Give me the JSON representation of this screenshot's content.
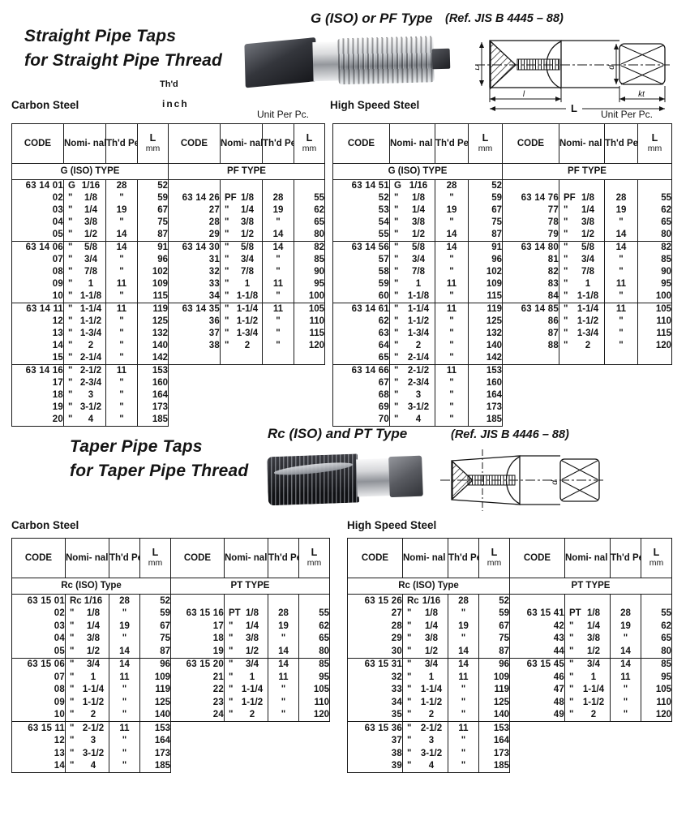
{
  "sections": {
    "straight": {
      "title_line1": "Straight Pipe Taps",
      "title_line2": "for Straight Pipe Thread",
      "type_label": "G (ISO) or PF Type",
      "ref_label": "(Ref. JIS B 4445 – 88)",
      "thd_note_line1": "Th'd",
      "thd_note_line2": "inch",
      "carbon_label": "Carbon Steel",
      "hss_label": "High Speed Steel",
      "unit_label": "Unit Per Pc."
    },
    "taper": {
      "title_line1": "Taper Pipe Taps",
      "title_line2": "for Taper Pipe Thread",
      "type_label": "Rc (ISO) and PT Type",
      "ref_label": "(Ref. JIS B 4446 – 88)",
      "carbon_label": "Carbon Steel",
      "hss_label": "High Speed Steel"
    }
  },
  "col_headers": {
    "code": "CODE",
    "size": "Nomi-\nnal\nSize",
    "thd": "Th'd\nPer\n25.4\nmm",
    "l_main": "L",
    "l_sub": "mm"
  },
  "diagram_labels": {
    "D": "D",
    "l": "l",
    "L": "L",
    "kt": "kt",
    "d": "d"
  },
  "tables": {
    "straight_carbon": {
      "type_left": "G (ISO) TYPE",
      "type_right": "PF TYPE",
      "separators": [
        5,
        10,
        15
      ],
      "right_rows": 15,
      "rows": [
        [
          "63 14 01",
          "G",
          "1/16",
          "28",
          "52",
          "",
          "",
          "",
          "",
          ""
        ],
        [
          "02",
          "\"",
          "1/8",
          "\"",
          "59",
          "63 14 26",
          "PF",
          "1/8",
          "28",
          "55"
        ],
        [
          "03",
          "\"",
          "1/4",
          "19",
          "67",
          "27",
          "\"",
          "1/4",
          "19",
          "62"
        ],
        [
          "04",
          "\"",
          "3/8",
          "\"",
          "75",
          "28",
          "\"",
          "3/8",
          "\"",
          "65"
        ],
        [
          "05",
          "\"",
          "1/2",
          "14",
          "87",
          "29",
          "\"",
          "1/2",
          "14",
          "80"
        ],
        [
          "63 14 06",
          "\"",
          "5/8",
          "14",
          "91",
          "63 14 30",
          "\"",
          "5/8",
          "14",
          "82"
        ],
        [
          "07",
          "\"",
          "3/4",
          "\"",
          "96",
          "31",
          "\"",
          "3/4",
          "\"",
          "85"
        ],
        [
          "08",
          "\"",
          "7/8",
          "\"",
          "102",
          "32",
          "\"",
          "7/8",
          "\"",
          "90"
        ],
        [
          "09",
          "\"",
          "1",
          "11",
          "109",
          "33",
          "\"",
          "1",
          "11",
          "95"
        ],
        [
          "10",
          "\"",
          "1-1/8",
          "\"",
          "115",
          "34",
          "\"",
          "1-1/8",
          "\"",
          "100"
        ],
        [
          "63 14 11",
          "\"",
          "1-1/4",
          "11",
          "119",
          "63 14 35",
          "\"",
          "1-1/4",
          "11",
          "105"
        ],
        [
          "12",
          "\"",
          "1-1/2",
          "\"",
          "125",
          "36",
          "\"",
          "1-1/2",
          "\"",
          "110"
        ],
        [
          "13",
          "\"",
          "1-3/4",
          "\"",
          "132",
          "37",
          "\"",
          "1-3/4",
          "\"",
          "115"
        ],
        [
          "14",
          "\"",
          "2",
          "\"",
          "140",
          "38",
          "\"",
          "2",
          "\"",
          "120"
        ],
        [
          "15",
          "\"",
          "2-1/4",
          "\"",
          "142",
          "",
          "",
          "",
          "",
          ""
        ],
        [
          "63 14 16",
          "\"",
          "2-1/2",
          "11",
          "153",
          "",
          "",
          "",
          "",
          ""
        ],
        [
          "17",
          "\"",
          "2-3/4",
          "\"",
          "160",
          "",
          "",
          "",
          "",
          ""
        ],
        [
          "18",
          "\"",
          "3",
          "\"",
          "164",
          "",
          "",
          "",
          "",
          ""
        ],
        [
          "19",
          "\"",
          "3-1/2",
          "\"",
          "173",
          "",
          "",
          "",
          "",
          ""
        ],
        [
          "20",
          "\"",
          "4",
          "\"",
          "185",
          "",
          "",
          "",
          "",
          ""
        ]
      ]
    },
    "straight_hss": {
      "type_left": "G (ISO) TYPE",
      "type_right": "PF TYPE",
      "separators": [
        5,
        10,
        15
      ],
      "right_rows": 15,
      "rows": [
        [
          "63 14 51",
          "G",
          "1/16",
          "28",
          "52",
          "",
          "",
          "",
          "",
          ""
        ],
        [
          "52",
          "\"",
          "1/8",
          "\"",
          "59",
          "63 14 76",
          "PF",
          "1/8",
          "28",
          "55"
        ],
        [
          "53",
          "\"",
          "1/4",
          "19",
          "67",
          "77",
          "\"",
          "1/4",
          "19",
          "62"
        ],
        [
          "54",
          "\"",
          "3/8",
          "\"",
          "75",
          "78",
          "\"",
          "3/8",
          "\"",
          "65"
        ],
        [
          "55",
          "\"",
          "1/2",
          "14",
          "87",
          "79",
          "\"",
          "1/2",
          "14",
          "80"
        ],
        [
          "63 14 56",
          "\"",
          "5/8",
          "14",
          "91",
          "63 14 80",
          "\"",
          "5/8",
          "14",
          "82"
        ],
        [
          "57",
          "\"",
          "3/4",
          "\"",
          "96",
          "81",
          "\"",
          "3/4",
          "\"",
          "85"
        ],
        [
          "58",
          "\"",
          "7/8",
          "\"",
          "102",
          "82",
          "\"",
          "7/8",
          "\"",
          "90"
        ],
        [
          "59",
          "\"",
          "1",
          "11",
          "109",
          "83",
          "\"",
          "1",
          "11",
          "95"
        ],
        [
          "60",
          "\"",
          "1-1/8",
          "\"",
          "115",
          "84",
          "\"",
          "1-1/8",
          "\"",
          "100"
        ],
        [
          "63 14 61",
          "\"",
          "1-1/4",
          "11",
          "119",
          "63 14 85",
          "\"",
          "1-1/4",
          "11",
          "105"
        ],
        [
          "62",
          "\"",
          "1-1/2",
          "\"",
          "125",
          "86",
          "\"",
          "1-1/2",
          "\"",
          "110"
        ],
        [
          "63",
          "\"",
          "1-3/4",
          "\"",
          "132",
          "87",
          "\"",
          "1-3/4",
          "\"",
          "115"
        ],
        [
          "64",
          "\"",
          "2",
          "\"",
          "140",
          "88",
          "\"",
          "2",
          "\"",
          "120"
        ],
        [
          "65",
          "\"",
          "2-1/4",
          "\"",
          "142",
          "",
          "",
          "",
          "",
          ""
        ],
        [
          "63 14 66",
          "\"",
          "2-1/2",
          "11",
          "153",
          "",
          "",
          "",
          "",
          ""
        ],
        [
          "67",
          "\"",
          "2-3/4",
          "\"",
          "160",
          "",
          "",
          "",
          "",
          ""
        ],
        [
          "68",
          "\"",
          "3",
          "\"",
          "164",
          "",
          "",
          "",
          "",
          ""
        ],
        [
          "69",
          "\"",
          "3-1/2",
          "\"",
          "173",
          "",
          "",
          "",
          "",
          ""
        ],
        [
          "70",
          "\"",
          "4",
          "\"",
          "185",
          "",
          "",
          "",
          "",
          ""
        ]
      ]
    },
    "taper_carbon": {
      "type_left": "Rc (ISO) Type",
      "type_right": "PT TYPE",
      "separators": [
        5,
        10
      ],
      "right_rows": 10,
      "rows": [
        [
          "63 15 01",
          "Rc",
          "1/16",
          "28",
          "52",
          "",
          "",
          "",
          "",
          ""
        ],
        [
          "02",
          "\"",
          "1/8",
          "\"",
          "59",
          "63 15 16",
          "PT",
          "1/8",
          "28",
          "55"
        ],
        [
          "03",
          "\"",
          "1/4",
          "19",
          "67",
          "17",
          "\"",
          "1/4",
          "19",
          "62"
        ],
        [
          "04",
          "\"",
          "3/8",
          "\"",
          "75",
          "18",
          "\"",
          "3/8",
          "\"",
          "65"
        ],
        [
          "05",
          "\"",
          "1/2",
          "14",
          "87",
          "19",
          "\"",
          "1/2",
          "14",
          "80"
        ],
        [
          "63 15 06",
          "\"",
          "3/4",
          "14",
          "96",
          "63 15 20",
          "\"",
          "3/4",
          "14",
          "85"
        ],
        [
          "07",
          "\"",
          "1",
          "11",
          "109",
          "21",
          "\"",
          "1",
          "11",
          "95"
        ],
        [
          "08",
          "\"",
          "1-1/4",
          "\"",
          "119",
          "22",
          "\"",
          "1-1/4",
          "\"",
          "105"
        ],
        [
          "09",
          "\"",
          "1-1/2",
          "\"",
          "125",
          "23",
          "\"",
          "1-1/2",
          "\"",
          "110"
        ],
        [
          "10",
          "\"",
          "2",
          "\"",
          "140",
          "24",
          "\"",
          "2",
          "\"",
          "120"
        ],
        [
          "63 15 11",
          "\"",
          "2-1/2",
          "11",
          "153",
          "",
          "",
          "",
          "",
          ""
        ],
        [
          "12",
          "\"",
          "3",
          "\"",
          "164",
          "",
          "",
          "",
          "",
          ""
        ],
        [
          "13",
          "\"",
          "3-1/2",
          "\"",
          "173",
          "",
          "",
          "",
          "",
          ""
        ],
        [
          "14",
          "\"",
          "4",
          "\"",
          "185",
          "",
          "",
          "",
          "",
          ""
        ]
      ]
    },
    "taper_hss": {
      "type_left": "Rc (ISO) Type",
      "type_right": "PT TYPE",
      "separators": [
        5,
        10
      ],
      "right_rows": 10,
      "rows": [
        [
          "63 15 26",
          "Rc",
          "1/16",
          "28",
          "52",
          "",
          "",
          "",
          "",
          ""
        ],
        [
          "27",
          "\"",
          "1/8",
          "\"",
          "59",
          "63 15 41",
          "PT",
          "1/8",
          "28",
          "55"
        ],
        [
          "28",
          "\"",
          "1/4",
          "19",
          "67",
          "42",
          "\"",
          "1/4",
          "19",
          "62"
        ],
        [
          "29",
          "\"",
          "3/8",
          "\"",
          "75",
          "43",
          "\"",
          "3/8",
          "\"",
          "65"
        ],
        [
          "30",
          "\"",
          "1/2",
          "14",
          "87",
          "44",
          "\"",
          "1/2",
          "14",
          "80"
        ],
        [
          "63 15 31",
          "\"",
          "3/4",
          "14",
          "96",
          "63 15 45",
          "\"",
          "3/4",
          "14",
          "85"
        ],
        [
          "32",
          "\"",
          "1",
          "11",
          "109",
          "46",
          "\"",
          "1",
          "11",
          "95"
        ],
        [
          "33",
          "\"",
          "1-1/4",
          "\"",
          "119",
          "47",
          "\"",
          "1-1/4",
          "\"",
          "105"
        ],
        [
          "34",
          "\"",
          "1-1/2",
          "\"",
          "125",
          "48",
          "\"",
          "1-1/2",
          "\"",
          "110"
        ],
        [
          "35",
          "\"",
          "2",
          "\"",
          "140",
          "49",
          "\"",
          "2",
          "\"",
          "120"
        ],
        [
          "63 15 36",
          "\"",
          "2-1/2",
          "11",
          "153",
          "",
          "",
          "",
          "",
          ""
        ],
        [
          "37",
          "\"",
          "3",
          "\"",
          "164",
          "",
          "",
          "",
          "",
          ""
        ],
        [
          "38",
          "\"",
          "3-1/2",
          "\"",
          "173",
          "",
          "",
          "",
          "",
          ""
        ],
        [
          "39",
          "\"",
          "4",
          "\"",
          "185",
          "",
          "",
          "",
          "",
          ""
        ]
      ]
    }
  }
}
